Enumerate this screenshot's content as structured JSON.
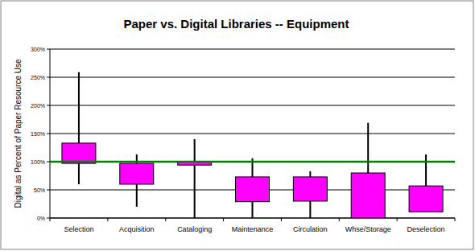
{
  "chart_data": {
    "type": "box",
    "title": "Paper vs. Digital Libraries -- Equipment",
    "y_label": "Digital as Percent of Paper Resource Use",
    "categories": [
      "Selection",
      "Acquisition",
      "Cataloging",
      "Maintenance",
      "Circulation",
      "Whse/Storage",
      "Deselection"
    ],
    "low": [
      60,
      20,
      0,
      0,
      0,
      0,
      11
    ],
    "q1": [
      97,
      60,
      94,
      29,
      30,
      0,
      11
    ],
    "q3": [
      133,
      97,
      100,
      73,
      73,
      80,
      57
    ],
    "high": [
      259,
      113,
      140,
      106,
      83,
      169,
      113
    ],
    "color": "#ff00ff",
    "reference_line": 100,
    "ylim": [
      0,
      300
    ],
    "yticks": [
      {
        "value": 0,
        "label": "0%"
      },
      {
        "value": 50,
        "label": "50%"
      },
      {
        "value": 100,
        "label": "100%"
      },
      {
        "value": 150,
        "label": "150%"
      },
      {
        "value": 200,
        "label": "200%"
      },
      {
        "value": 250,
        "label": "250%"
      },
      {
        "value": 300,
        "label": "300%"
      }
    ],
    "grid": true
  }
}
